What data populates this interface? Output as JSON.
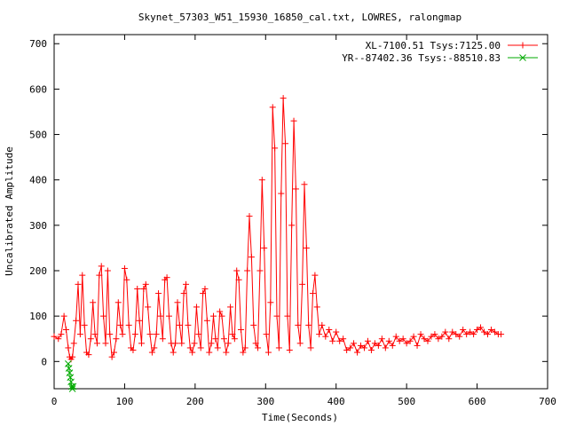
{
  "chart_data": {
    "type": "line",
    "title": "Skynet_57303_W51_15930_16850_cal.txt, LOWRES, ralongmap",
    "xlabel": "Time(Seconds)",
    "ylabel": "Uncalibrated Amplitude",
    "xlim": [
      0,
      700
    ],
    "ylim": [
      -60,
      720
    ],
    "xticks": [
      0,
      100,
      200,
      300,
      400,
      500,
      600,
      700
    ],
    "yticks": [
      0,
      100,
      200,
      300,
      400,
      500,
      600,
      700
    ],
    "xtick_labels": [
      "0",
      "100",
      "200",
      "300",
      "400",
      "500",
      "600",
      "700"
    ],
    "ytick_labels": [
      "0",
      "100",
      "200",
      "300",
      "400",
      "500",
      "600",
      "700"
    ],
    "grid": false,
    "legend_position": "top-right",
    "series": [
      {
        "name": "XL-7100.51 Tsys:7125.00",
        "color": "#ff0000",
        "marker": "plus",
        "x": [
          0,
          6,
          10,
          14,
          17,
          20,
          22,
          24,
          26,
          28,
          31,
          34,
          37,
          40,
          43,
          46,
          49,
          52,
          55,
          58,
          61,
          64,
          67,
          70,
          73,
          76,
          79,
          82,
          85,
          88,
          91,
          94,
          97,
          100,
          103,
          106,
          109,
          112,
          115,
          118,
          121,
          124,
          127,
          130,
          133,
          136,
          139,
          142,
          145,
          148,
          151,
          154,
          157,
          160,
          163,
          166,
          169,
          172,
          175,
          178,
          181,
          184,
          187,
          190,
          193,
          196,
          199,
          202,
          205,
          208,
          211,
          214,
          217,
          220,
          223,
          226,
          229,
          232,
          235,
          238,
          241,
          244,
          247,
          250,
          253,
          256,
          259,
          262,
          265,
          268,
          271,
          274,
          277,
          280,
          283,
          286,
          289,
          292,
          295,
          298,
          301,
          304,
          307,
          310,
          313,
          316,
          319,
          322,
          325,
          328,
          331,
          334,
          337,
          340,
          343,
          346,
          349,
          352,
          355,
          358,
          361,
          364,
          367,
          370,
          373,
          376,
          380,
          385,
          390,
          395,
          400,
          405,
          410,
          415,
          420,
          425,
          430,
          435,
          440,
          445,
          450,
          455,
          460,
          465,
          470,
          475,
          480,
          485,
          490,
          495,
          500,
          505,
          510,
          515,
          520,
          525,
          530,
          535,
          540,
          545,
          550,
          555,
          560,
          565,
          570,
          575,
          580,
          585,
          590,
          595,
          600,
          605,
          610,
          615,
          620,
          625,
          630,
          634
        ],
        "y": [
          55,
          50,
          60,
          100,
          70,
          30,
          10,
          5,
          10,
          40,
          90,
          170,
          60,
          190,
          80,
          20,
          15,
          50,
          130,
          60,
          40,
          190,
          210,
          100,
          40,
          200,
          60,
          10,
          20,
          50,
          130,
          80,
          60,
          205,
          180,
          80,
          30,
          25,
          60,
          160,
          90,
          40,
          160,
          170,
          120,
          60,
          20,
          30,
          60,
          150,
          100,
          50,
          180,
          185,
          100,
          40,
          20,
          40,
          130,
          80,
          40,
          150,
          170,
          80,
          30,
          20,
          40,
          120,
          60,
          30,
          150,
          160,
          90,
          20,
          40,
          100,
          50,
          30,
          110,
          100,
          50,
          20,
          40,
          120,
          60,
          50,
          200,
          180,
          70,
          20,
          30,
          200,
          320,
          230,
          80,
          40,
          30,
          200,
          400,
          250,
          60,
          20,
          130,
          560,
          470,
          100,
          30,
          370,
          580,
          480,
          100,
          25,
          300,
          530,
          380,
          80,
          40,
          170,
          390,
          250,
          80,
          30,
          150,
          190,
          120,
          60,
          80,
          55,
          70,
          45,
          65,
          45,
          50,
          25,
          30,
          40,
          20,
          35,
          30,
          45,
          25,
          40,
          35,
          50,
          30,
          45,
          35,
          55,
          45,
          50,
          40,
          45,
          55,
          35,
          60,
          50,
          45,
          55,
          60,
          50,
          55,
          65,
          50,
          65,
          60,
          55,
          70,
          60,
          65,
          60,
          70,
          75,
          65,
          60,
          70,
          65,
          60,
          60
        ]
      },
      {
        "name": "YR--87402.36 Tsys:-88510.83",
        "color": "#00aa00",
        "marker": "cross",
        "x": [
          20,
          21,
          22,
          23,
          24,
          25,
          26,
          27
        ],
        "y": [
          -5,
          -15,
          -25,
          -35,
          -45,
          -55,
          -60,
          -55
        ]
      }
    ]
  }
}
